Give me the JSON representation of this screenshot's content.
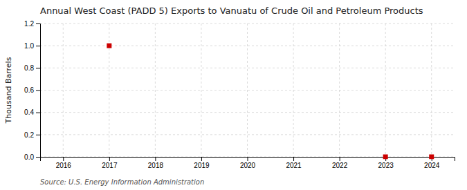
{
  "chart_data": {
    "type": "scatter",
    "title": "Annual West Coast (PADD 5) Exports to Vanuatu of Crude Oil and Petroleum Products",
    "ylabel": "Thousand Barrels",
    "source": "Source: U.S. Energy Information Administration",
    "x": [
      2017,
      2023,
      2024
    ],
    "values": [
      1.0,
      0.0,
      0.0
    ],
    "xlim": [
      2015.5,
      2024.5
    ],
    "ylim": [
      0.0,
      1.2
    ],
    "xticks": [
      2016,
      2017,
      2018,
      2019,
      2020,
      2021,
      2022,
      2023,
      2024
    ],
    "yticks": [
      {
        "value": 0.0,
        "label": "0.0"
      },
      {
        "value": 0.2,
        "label": "0.2"
      },
      {
        "value": 0.4,
        "label": "0.4"
      },
      {
        "value": 0.6,
        "label": "0.6"
      },
      {
        "value": 0.8,
        "label": "0.8"
      },
      {
        "value": 1.0,
        "label": "1.0"
      },
      {
        "value": 1.2,
        "label": "1.2"
      }
    ],
    "color": "#cc0000",
    "marker": "square",
    "grid": true
  }
}
